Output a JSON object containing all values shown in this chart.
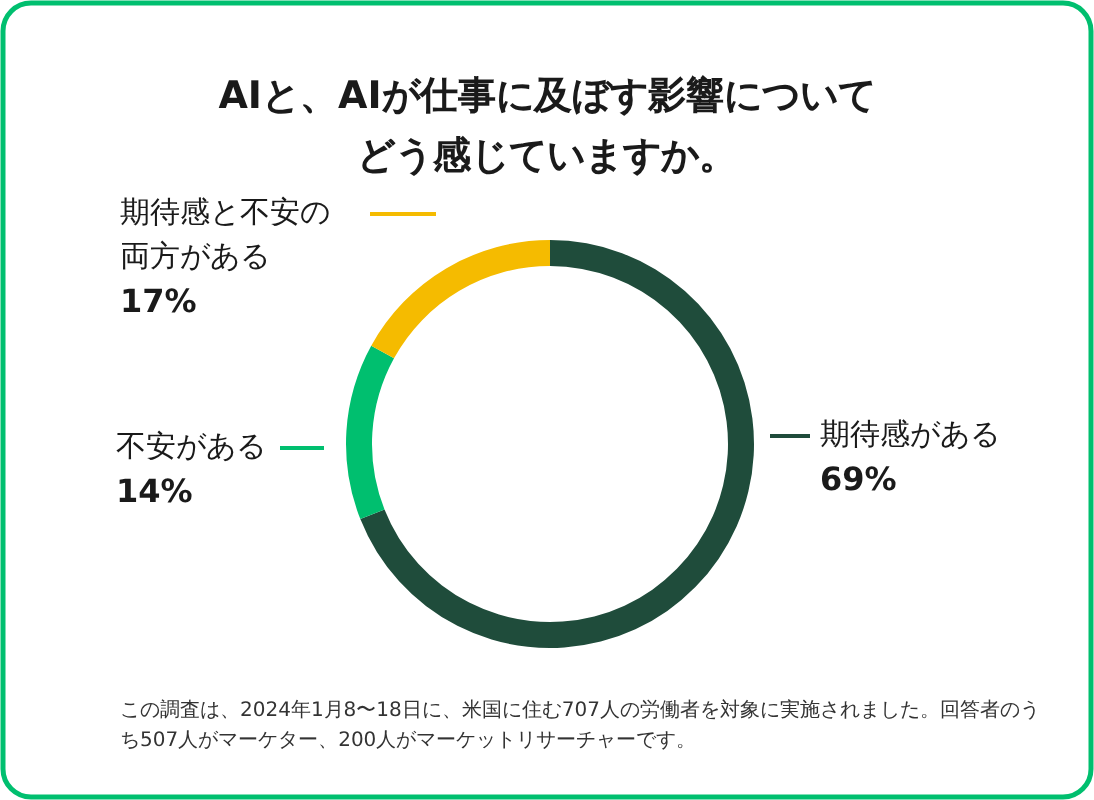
{
  "chart_data": {
    "type": "donut",
    "title": "AIと、AIが仕事に及ぼす影響についてどう感じていますか。",
    "categories": [
      "期待感がある",
      "不安がある",
      "期待感と不安の両方がある"
    ],
    "values": [
      69,
      14,
      17
    ],
    "value_labels": [
      "69%",
      "14%",
      "17%"
    ],
    "colors": [
      "#1f4c3b",
      "#00bf6f",
      "#f5bb00"
    ],
    "annotations": [
      "この調査は、2024年1月8〜18日に、米国に住む707人の労働者を対象に実施されました。回答者のうち507人がマーケター、200人がマーケットリサーチャーです。"
    ]
  }
}
